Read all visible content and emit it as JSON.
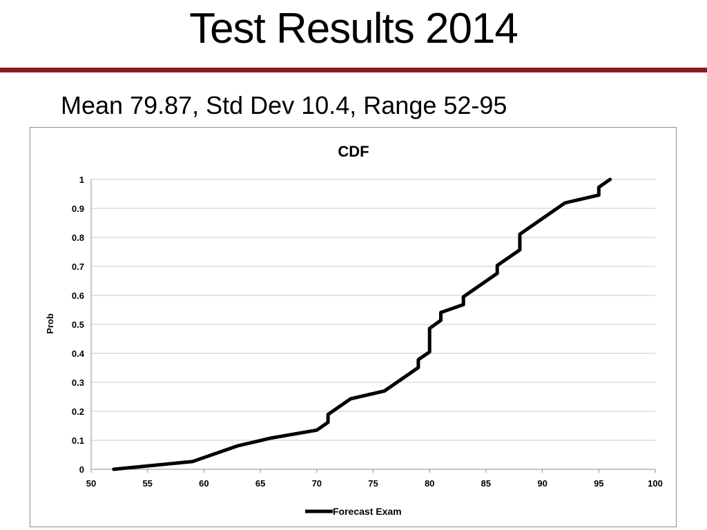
{
  "slide": {
    "title": "Test Results 2014",
    "subtitle": "Mean 79.87, Std Dev 10.4, Range 52-95",
    "accent_color": "#8b1a1a"
  },
  "chart_data": {
    "type": "line",
    "title": "CDF",
    "xlabel": "",
    "ylabel": "Prob",
    "xlim": [
      50,
      100
    ],
    "ylim": [
      0,
      1
    ],
    "xticks": [
      50,
      55,
      60,
      65,
      70,
      75,
      80,
      85,
      90,
      95,
      100
    ],
    "yticks": [
      0,
      0.1,
      0.2,
      0.3,
      0.4,
      0.5,
      0.6,
      0.7,
      0.8,
      0.9,
      1
    ],
    "grid": "horizontal",
    "legend": "bottom",
    "series": [
      {
        "name": "Forecast Exam",
        "color": "#000000",
        "x": [
          52,
          59,
          63,
          66,
          70,
          71,
          71,
          73,
          76,
          79,
          79,
          80,
          80,
          81,
          81,
          83,
          83,
          86,
          86,
          88,
          88,
          92,
          95,
          95,
          96
        ],
        "y": [
          0,
          0.027,
          0.081,
          0.108,
          0.135,
          0.162,
          0.189,
          0.243,
          0.27,
          0.351,
          0.378,
          0.405,
          0.486,
          0.514,
          0.541,
          0.568,
          0.595,
          0.676,
          0.703,
          0.757,
          0.811,
          0.919,
          0.946,
          0.973,
          1.0
        ]
      }
    ]
  }
}
